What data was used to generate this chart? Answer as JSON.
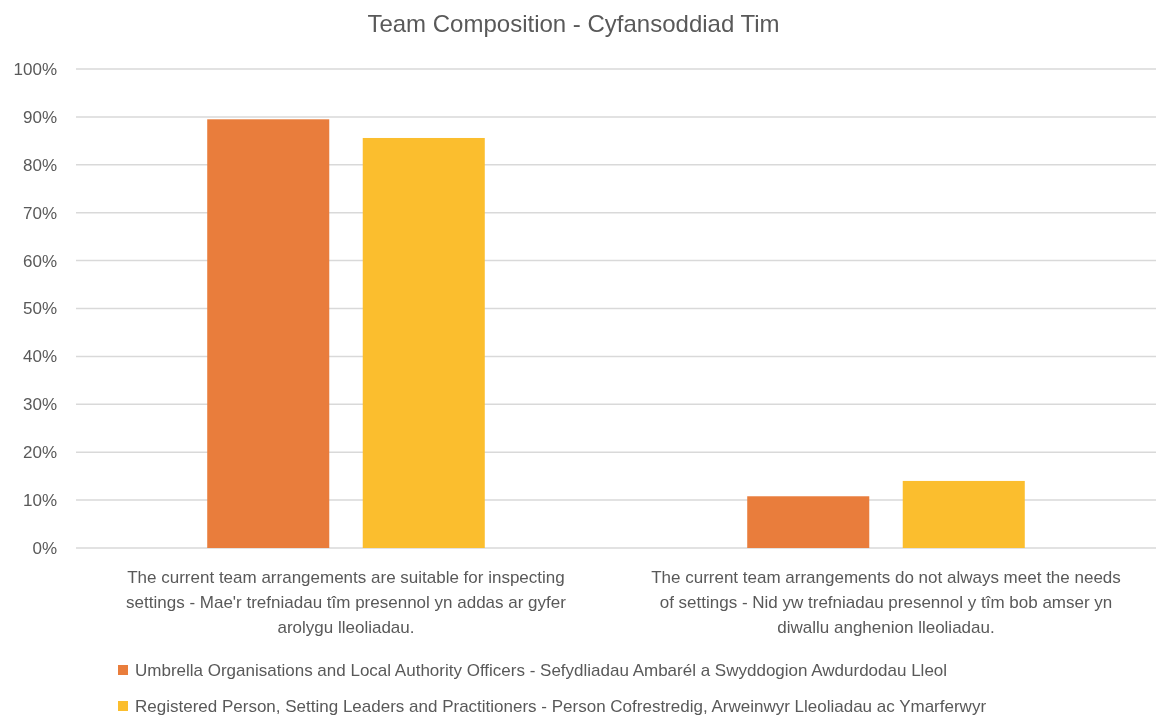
{
  "chart_data": {
    "type": "bar",
    "title": "Team Composition - Cyfansoddiad Tim",
    "categories": [
      "The current team arrangements are suitable for inspecting settings - Mae'r trefniadau tîm presennol yn addas ar gyfer arolygu lleoliadau.",
      "The current team arrangements do not always meet the needs of settings - Nid yw trefniadau presennol y tîm bob amser yn diwallu anghenion lleoliadau."
    ],
    "series": [
      {
        "name": "Umbrella Organisations and Local Authority Officers - Sefydliadau Ambarél a Swyddogion Awdurdodau Lleol",
        "color": "#e97d3c",
        "values": [
          89.5,
          10.8
        ]
      },
      {
        "name": "Registered Person, Setting Leaders and Practitioners - Person Cofrestredig, Arweinwyr Lleoliadau ac Ymarferwyr",
        "color": "#fbbe2e",
        "values": [
          85.6,
          14.0
        ]
      }
    ],
    "ylim": [
      0,
      100
    ],
    "yticks": [
      {
        "value": 0,
        "label": "0%"
      },
      {
        "value": 10,
        "label": "10%"
      },
      {
        "value": 20,
        "label": "20%"
      },
      {
        "value": 30,
        "label": "30%"
      },
      {
        "value": 40,
        "label": "40%"
      },
      {
        "value": 50,
        "label": "50%"
      },
      {
        "value": 60,
        "label": "60%"
      },
      {
        "value": 70,
        "label": "70%"
      },
      {
        "value": 80,
        "label": "80%"
      },
      {
        "value": 90,
        "label": "90%"
      },
      {
        "value": 100,
        "label": "100%"
      }
    ],
    "grid": "y",
    "legend": "bottom"
  }
}
